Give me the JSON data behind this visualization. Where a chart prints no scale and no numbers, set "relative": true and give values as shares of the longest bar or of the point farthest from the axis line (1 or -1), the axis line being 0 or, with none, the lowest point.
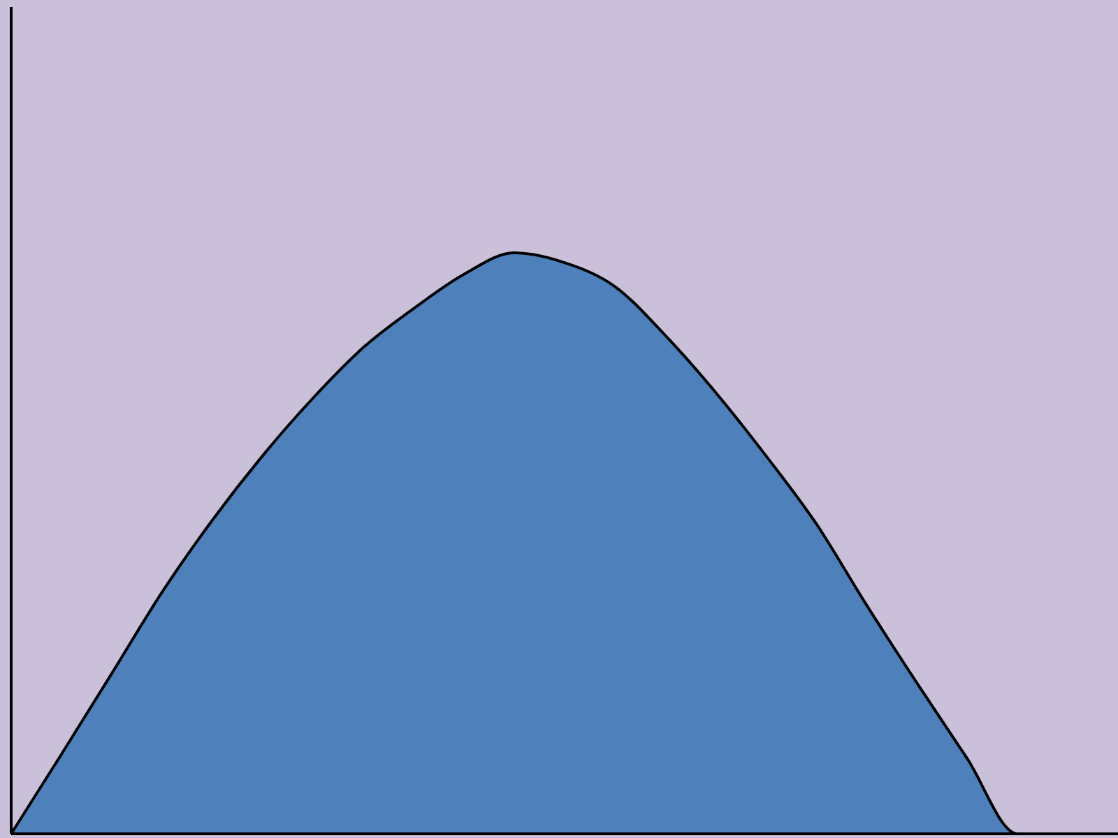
{
  "chart_data": {
    "type": "area",
    "relative": true,
    "categories": [
      null,
      null,
      null,
      null,
      null,
      null,
      null,
      null,
      null,
      null,
      null,
      null,
      null,
      null,
      null,
      null,
      null,
      null,
      null,
      null,
      null,
      null,
      null
    ],
    "series": [
      {
        "color": "#4e81bc",
        "values": [
          0,
          0.137,
          0.276,
          0.416,
          0.54,
          0.651,
          0.75,
          0.837,
          0.904,
          0.963,
          1,
          0.983,
          0.942,
          0.858,
          0.76,
          0.651,
          0.534,
          0.394,
          0.26,
          0.13,
          0,
          0,
          0
        ]
      }
    ]
  }
}
